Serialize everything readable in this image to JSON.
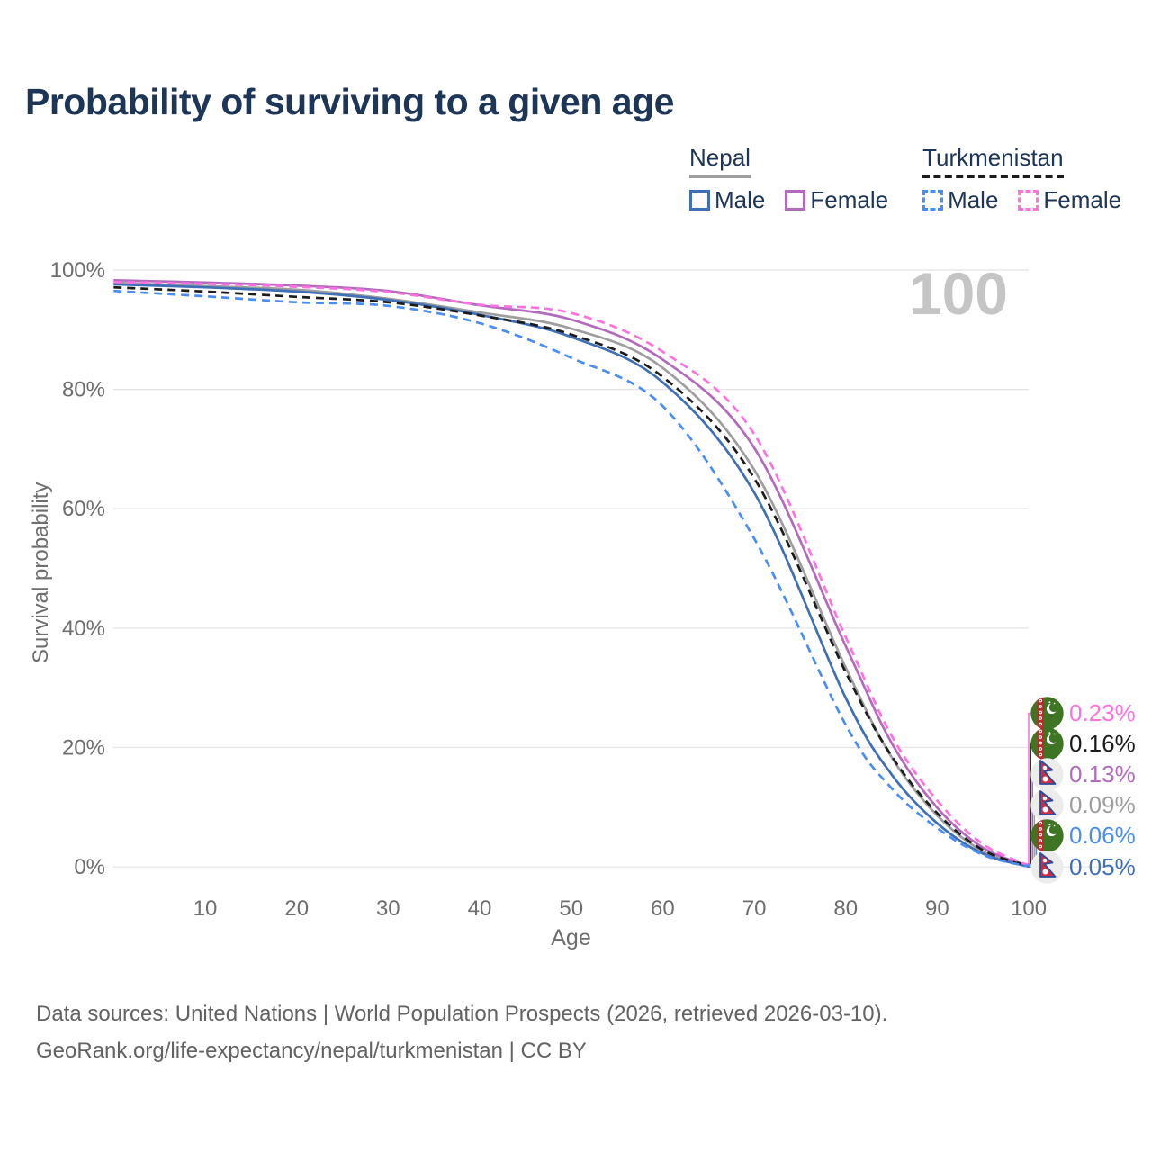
{
  "title": "Probability of surviving to a given age",
  "watermark": "100",
  "legend": {
    "groups": [
      {
        "name": "Nepal",
        "line_style": "solid",
        "underline_color": "#9e9e9e",
        "items": [
          {
            "label": "Male",
            "color": "#3f6fb6"
          },
          {
            "label": "Female",
            "color": "#b36abe"
          }
        ]
      },
      {
        "name": "Turkmenistan",
        "line_style": "dashed",
        "underline_color": "#1c1c1c",
        "items": [
          {
            "label": "Male",
            "color": "#4a8df5"
          },
          {
            "label": "Female",
            "color": "#ff70e0"
          }
        ]
      }
    ]
  },
  "chart_data": {
    "type": "line",
    "title": "Probability of surviving to a given age",
    "xlabel": "Age",
    "ylabel": "Survival probability",
    "xlim": [
      0,
      100
    ],
    "ylim": [
      0,
      100
    ],
    "grid": "horizontal",
    "x_ticks": [
      10,
      20,
      30,
      40,
      50,
      60,
      70,
      80,
      90,
      100
    ],
    "y_ticks": [
      0,
      20,
      40,
      60,
      80,
      100
    ],
    "y_tick_labels": [
      "0%",
      "20%",
      "40%",
      "60%",
      "80%",
      "100%"
    ],
    "x": [
      0,
      10,
      20,
      30,
      40,
      50,
      60,
      70,
      80,
      85,
      90,
      95,
      100
    ],
    "series": [
      {
        "name": "Turkmenistan Female",
        "country": "Turkmenistan",
        "sex": "Female",
        "color": "#ff70e0",
        "dash": true,
        "flag": "turkmenistan",
        "end_label": "0.23%",
        "values": [
          98.0,
          97.7,
          97.2,
          96.3,
          94.2,
          92.8,
          86.3,
          72.5,
          38.5,
          22.0,
          11.1,
          3.8,
          0.23
        ]
      },
      {
        "name": "Turkmenistan Both sexes",
        "country": "Turkmenistan",
        "sex": "Both",
        "color": "#1c1c1c",
        "dash": true,
        "flag": "turkmenistan",
        "end_label": "0.16%",
        "values": [
          97.1,
          96.4,
          95.5,
          94.6,
          92.4,
          89.2,
          82.1,
          65.1,
          32.6,
          18.6,
          9.0,
          2.8,
          0.16
        ]
      },
      {
        "name": "Nepal Female",
        "country": "Nepal",
        "sex": "Female",
        "color": "#b36abe",
        "dash": false,
        "flag": "nepal",
        "end_label": "0.13%",
        "values": [
          98.3,
          97.9,
          97.4,
          96.5,
          94.1,
          91.7,
          85.0,
          70.2,
          37.0,
          20.8,
          9.9,
          3.2,
          0.13
        ]
      },
      {
        "name": "Nepal Both sexes",
        "country": "Nepal",
        "sex": "Both",
        "color": "#9e9e9e",
        "dash": false,
        "flag": "nepal",
        "end_label": "0.09%",
        "values": [
          97.9,
          97.3,
          96.7,
          95.2,
          92.9,
          90.2,
          83.6,
          66.5,
          33.4,
          18.4,
          8.6,
          2.6,
          0.09
        ]
      },
      {
        "name": "Turkmenistan Male",
        "country": "Turkmenistan",
        "sex": "Male",
        "color": "#4a8df5",
        "dash": true,
        "flag": "turkmenistan",
        "end_label": "0.06%",
        "values": [
          96.5,
          95.6,
          94.6,
          94.0,
          91.1,
          85.3,
          77.2,
          55.0,
          23.8,
          13.2,
          6.5,
          2.0,
          0.06
        ]
      },
      {
        "name": "Nepal Male",
        "country": "Nepal",
        "sex": "Male",
        "color": "#3f6fb6",
        "dash": false,
        "flag": "nepal",
        "end_label": "0.05%",
        "values": [
          97.6,
          97.1,
          96.4,
          95.0,
          92.5,
          88.8,
          81.2,
          62.7,
          28.3,
          15.5,
          7.3,
          2.2,
          0.05
        ]
      }
    ],
    "colors": {
      "grid": "#e4e4e4",
      "axis_text": "#6e6e6e",
      "nepal_flag_red": "#d02c3e",
      "nepal_flag_blue": "#2b4c9b",
      "turkmenistan_flag_green": "#3e7523",
      "turkmenistan_flag_red": "#c1272d"
    }
  },
  "footer": {
    "line1": "Data sources: United Nations | World Population Prospects (2026, retrieved 2026-03-10).",
    "line2": "GeoRank.org/life-expectancy/nepal/turkmenistan | CC BY"
  }
}
